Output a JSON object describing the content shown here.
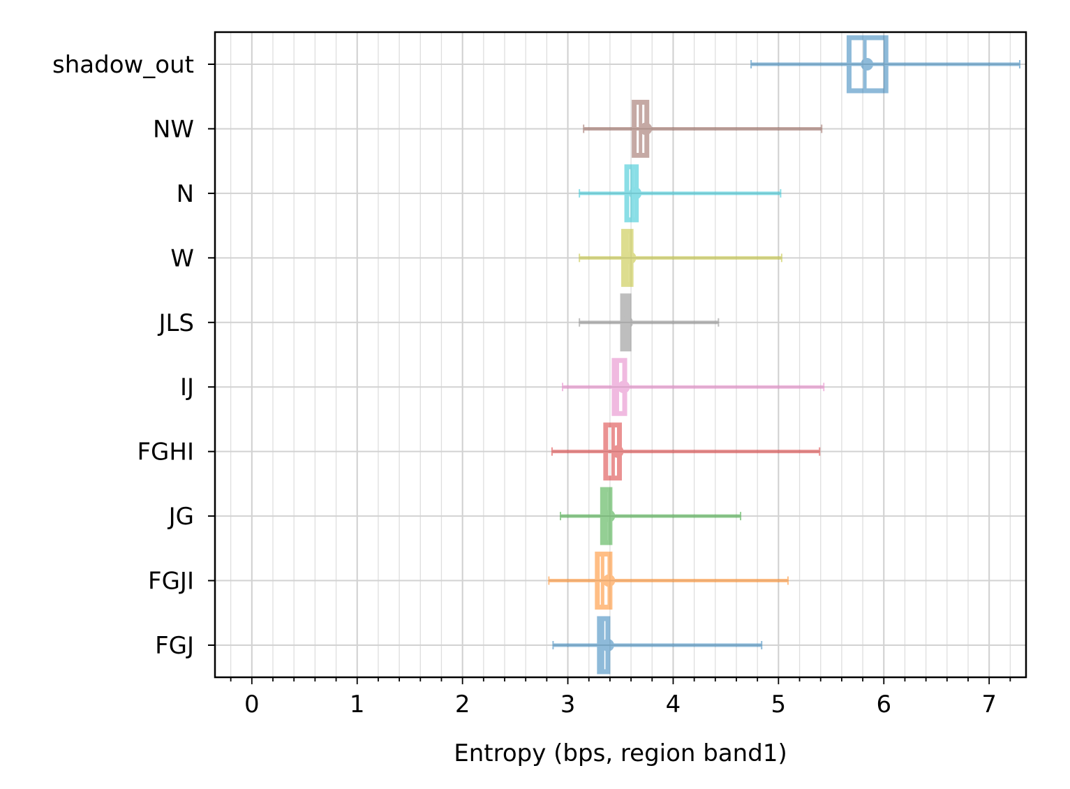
{
  "chart_data": {
    "type": "boxplot",
    "title": "",
    "xlabel": "Entropy (bps, region band1)",
    "ylabel": "",
    "xlim": [
      -0.35,
      7.35
    ],
    "xticks": [
      "0",
      "1",
      "2",
      "3",
      "4",
      "5",
      "6",
      "7"
    ],
    "grid": true,
    "categories": [
      "shadow_out",
      "NW",
      "N",
      "W",
      "JLS",
      "IJ",
      "FGHI",
      "JG",
      "FGJI",
      "FGJ"
    ],
    "series": [
      {
        "category": "shadow_out",
        "color": "#1f77b4",
        "whisker_low": 4.74,
        "q1": 5.67,
        "median": 5.82,
        "q3": 6.02,
        "whisker_high": 7.29,
        "mean": 5.84
      },
      {
        "category": "NW",
        "color": "#8c564b",
        "whisker_low": 3.15,
        "q1": 3.63,
        "median": 3.69,
        "q3": 3.75,
        "whisker_high": 5.41,
        "mean": 3.74
      },
      {
        "category": "N",
        "color": "#17becf",
        "whisker_low": 3.11,
        "q1": 3.56,
        "median": 3.61,
        "q3": 3.65,
        "whisker_high": 5.02,
        "mean": 3.64
      },
      {
        "category": "W",
        "color": "#bcbd22",
        "whisker_low": 3.11,
        "q1": 3.53,
        "median": 3.56,
        "q3": 3.6,
        "whisker_high": 5.03,
        "mean": 3.59
      },
      {
        "category": "JLS",
        "color": "#7f7f7f",
        "whisker_low": 3.11,
        "q1": 3.52,
        "median": 3.55,
        "q3": 3.58,
        "whisker_high": 4.43,
        "mean": 3.56
      },
      {
        "category": "IJ",
        "color": "#e377c2",
        "whisker_low": 2.95,
        "q1": 3.44,
        "median": 3.47,
        "q3": 3.54,
        "whisker_high": 5.43,
        "mean": 3.53
      },
      {
        "category": "FGHI",
        "color": "#d62728",
        "whisker_low": 2.85,
        "q1": 3.36,
        "median": 3.43,
        "q3": 3.49,
        "whisker_high": 5.39,
        "mean": 3.47
      },
      {
        "category": "JG",
        "color": "#2ca02c",
        "whisker_low": 2.93,
        "q1": 3.33,
        "median": 3.36,
        "q3": 3.4,
        "whisker_high": 4.64,
        "mean": 3.39
      },
      {
        "category": "FGJI",
        "color": "#ff7f0e",
        "whisker_low": 2.82,
        "q1": 3.28,
        "median": 3.33,
        "q3": 3.4,
        "whisker_high": 5.09,
        "mean": 3.39
      },
      {
        "category": "FGJ",
        "color": "#1f77b4",
        "whisker_low": 2.86,
        "q1": 3.3,
        "median": 3.33,
        "q3": 3.38,
        "whisker_high": 4.84,
        "mean": 3.38
      }
    ]
  }
}
